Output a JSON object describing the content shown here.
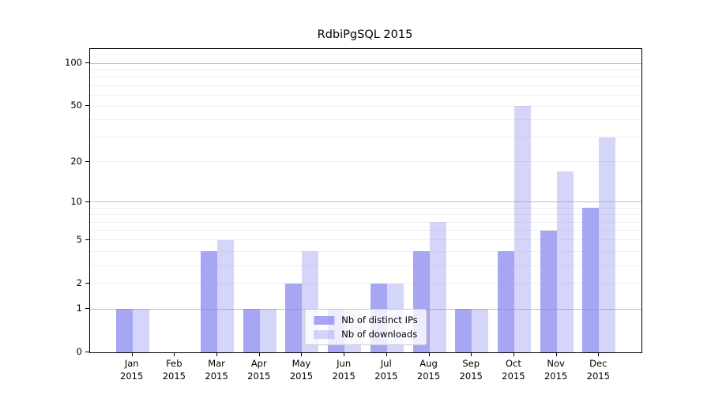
{
  "title": "RdbiPgSQL 2015",
  "chart_data": {
    "type": "bar",
    "title": "RdbiPgSQL 2015",
    "categories": [
      "Jan",
      "Feb",
      "Mar",
      "Apr",
      "May",
      "Jun",
      "Jul",
      "Aug",
      "Sep",
      "Oct",
      "Nov",
      "Dec"
    ],
    "x_year": "2015",
    "series": [
      {
        "name": "Nb of distinct IPs",
        "color": "rgba(136,136,238,0.75)",
        "base_color": "#8888ee",
        "values": [
          1,
          0,
          4,
          1,
          2,
          1,
          2,
          4,
          1,
          4,
          6,
          9
        ]
      },
      {
        "name": "Nb of downloads",
        "color": "rgba(136,136,238,0.35)",
        "base_color": "#8888ee",
        "values": [
          1,
          0,
          5,
          1,
          4,
          1,
          2,
          7,
          1,
          50,
          17,
          30
        ]
      }
    ],
    "scale": "log1p",
    "ylim": [
      0,
      126
    ],
    "y_ticks": [
      0,
      1,
      2,
      5,
      10,
      20,
      50,
      100
    ],
    "major_gridlines": [
      1,
      10,
      100
    ],
    "minor_gridlines": [
      2,
      3,
      4,
      5,
      6,
      7,
      8,
      9,
      20,
      30,
      40,
      50,
      60,
      70,
      80,
      90
    ],
    "grid": true,
    "legend_position": "lower center",
    "xlabel": "",
    "ylabel": ""
  },
  "colors": {
    "background": "#ffffff",
    "axis": "#000000",
    "grid_minor": "#efefef",
    "grid_major": "#c0c0c0",
    "legend_border": "#cccccc"
  }
}
